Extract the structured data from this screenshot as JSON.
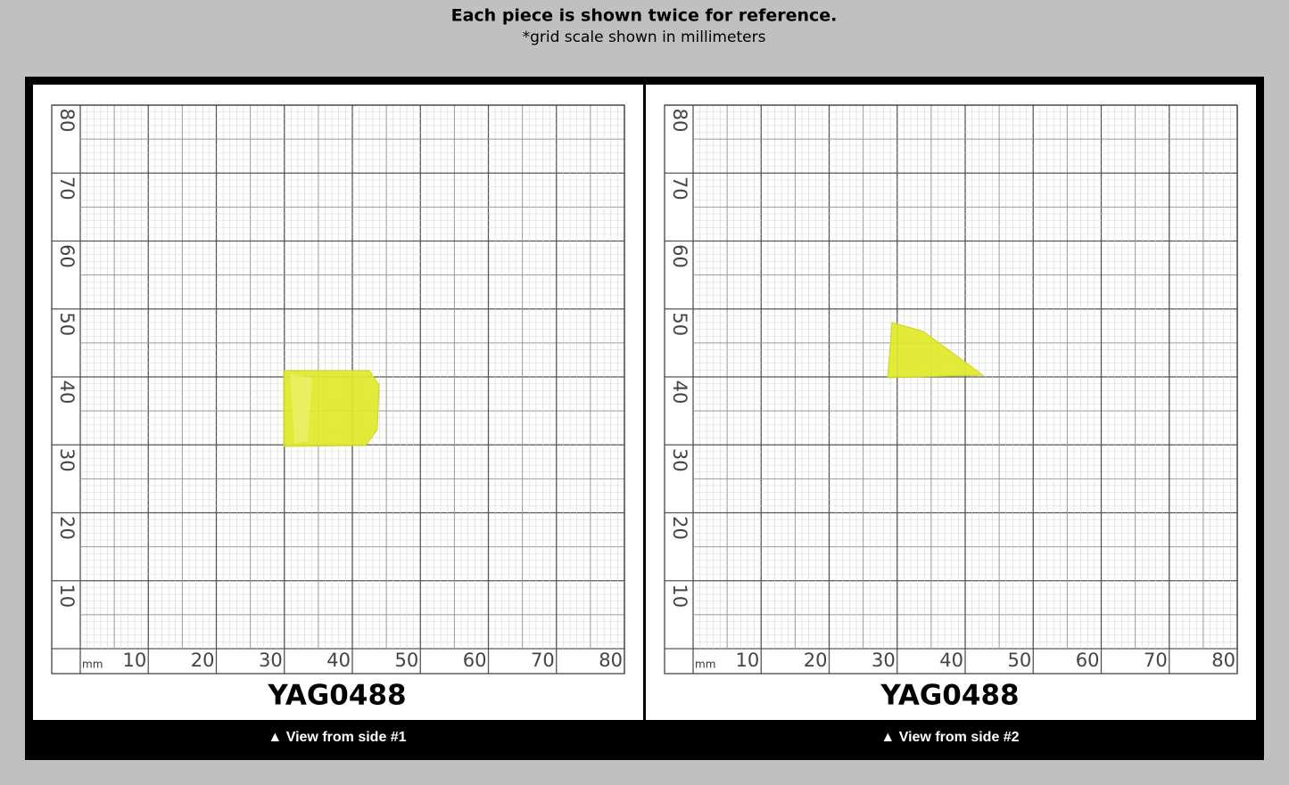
{
  "header": {
    "title": "Each piece is shown twice for reference.",
    "subtitle": "*grid scale shown in millimeters"
  },
  "grid": {
    "unit": "mm",
    "x_labels": [
      "10",
      "20",
      "30",
      "40",
      "50",
      "60",
      "70",
      "80"
    ],
    "y_labels": [
      "10",
      "20",
      "30",
      "40",
      "50",
      "60",
      "70",
      "80"
    ]
  },
  "panels": [
    {
      "sample_id": "YAG0488",
      "caption": "▲ View from side #1"
    },
    {
      "sample_id": "YAG0488",
      "caption": "▲ View from side #2"
    }
  ]
}
